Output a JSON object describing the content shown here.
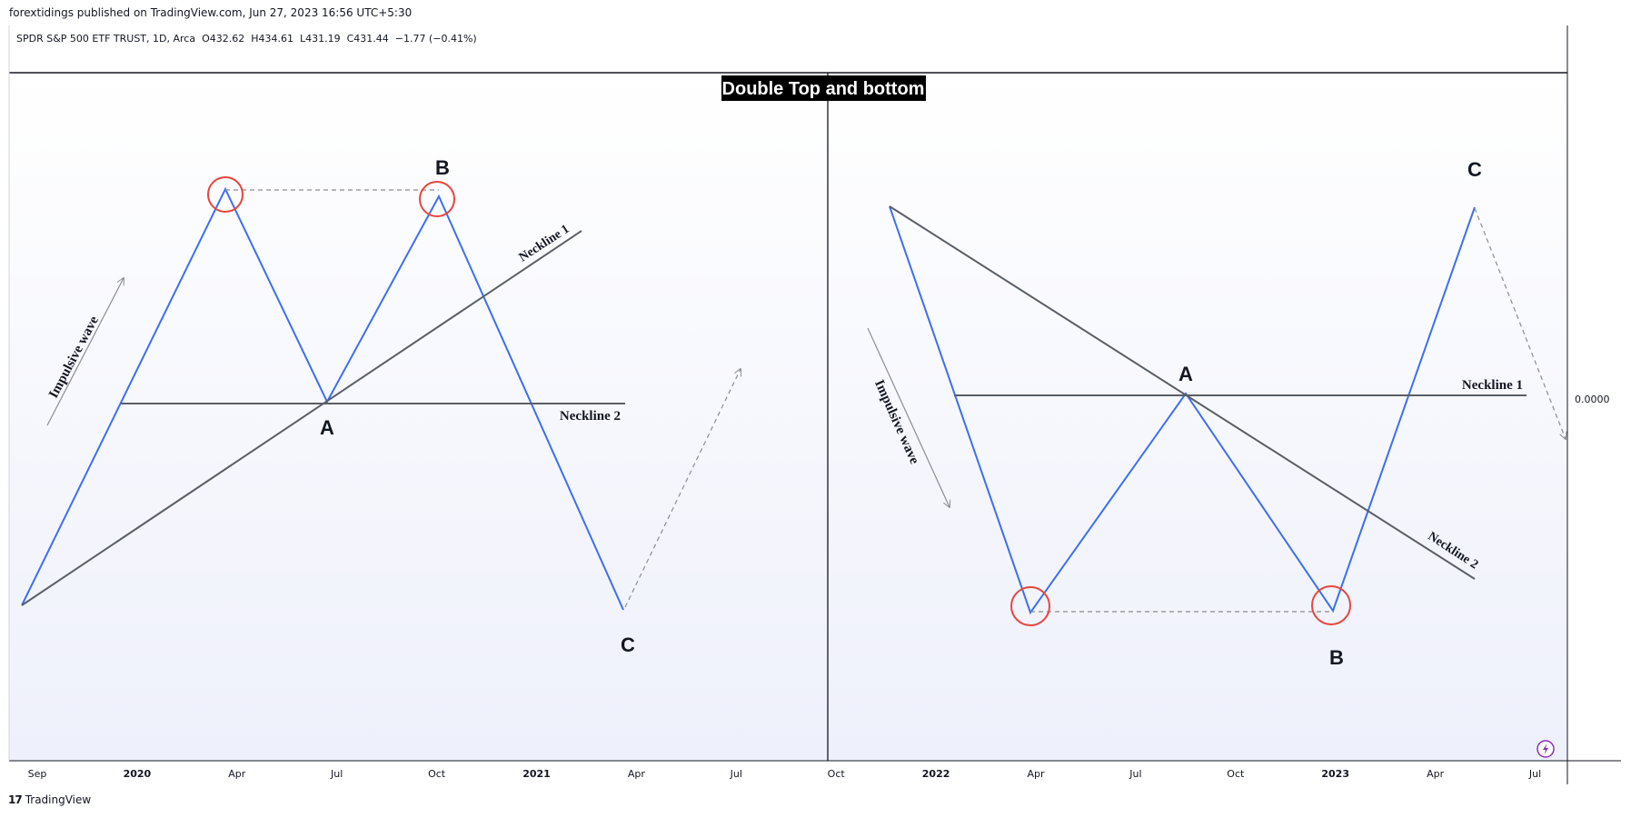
{
  "header": {
    "published": "forextidings published on TradingView.com, Jun 27, 2023 16:56 UTC+5:30"
  },
  "legend": {
    "symbol": "SPDR S&P 500 ETF TRUST, 1D, Arca",
    "ohlc": "O432.62  H434.61  L431.19  C431.44  −1.77 (−0.41%)"
  },
  "footer": {
    "logo_mark": "17",
    "brand": "TradingView"
  },
  "colors": {
    "wave": "#3c6ff0",
    "neckline": "#5a5e66",
    "circle": "#e8453c",
    "dashed": "#8a8d94",
    "bg_top": "#ffffff",
    "bg_bottom": "#eef0fb"
  },
  "chart_data": {
    "type": "line",
    "title": "Double Top and bottom",
    "price_axis": {
      "label": "0.0000"
    },
    "time_axis": {
      "ticks": [
        {
          "label": "Sep",
          "bold": false
        },
        {
          "label": "2020",
          "bold": true
        },
        {
          "label": "Apr",
          "bold": false
        },
        {
          "label": "Jul",
          "bold": false
        },
        {
          "label": "Oct",
          "bold": false
        },
        {
          "label": "2021",
          "bold": true
        },
        {
          "label": "Apr",
          "bold": false
        },
        {
          "label": "Jul",
          "bold": false
        },
        {
          "label": "Oct",
          "bold": false
        },
        {
          "label": "2022",
          "bold": true
        },
        {
          "label": "Apr",
          "bold": false
        },
        {
          "label": "Jul",
          "bold": false
        },
        {
          "label": "Oct",
          "bold": false
        },
        {
          "label": "2023",
          "bold": true
        },
        {
          "label": "Apr",
          "bold": false
        },
        {
          "label": "Jul",
          "bold": false
        }
      ]
    },
    "panels": [
      {
        "pattern": "double-top",
        "wave_label": "Impulsive wave",
        "point_labels": {
          "A": "A",
          "B": "B",
          "C": "C"
        },
        "neckline_labels": [
          "Neckline 1",
          "Neckline 2"
        ]
      },
      {
        "pattern": "double-bottom",
        "wave_label": "Impulsive wave",
        "point_labels": {
          "A": "A",
          "B": "B",
          "C": "C"
        },
        "neckline_labels": [
          "Neckline 1",
          "Neckline 2"
        ]
      }
    ]
  },
  "icons": {
    "replay": "lightning-icon"
  }
}
